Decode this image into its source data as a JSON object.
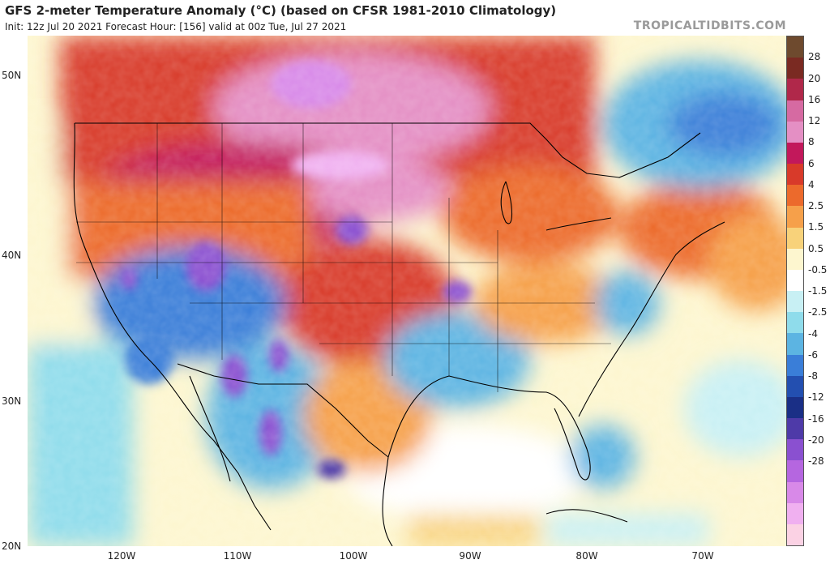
{
  "title": "GFS 2-meter Temperature Anomaly (°C) (based on CFSR 1981-2010 Climatology)",
  "subtitle": "Init: 12z Jul 20 2021   Forecast Hour: [156]   valid at 00z Tue, Jul 27 2021",
  "credit": "TROPICALTIDBITS.COM",
  "lat_labels": [
    "50N",
    "40N",
    "30N",
    "20N"
  ],
  "lon_labels": [
    "120W",
    "110W",
    "100W",
    "90W",
    "80W",
    "70W"
  ],
  "colorbar": {
    "labels": [
      "28",
      "20",
      "16",
      "12",
      "8",
      "6",
      "4",
      "2.5",
      "1.5",
      "0.5",
      "-0.5",
      "-1.5",
      "-2.5",
      "-4",
      "-6",
      "-8",
      "-12",
      "-16",
      "-20",
      "-28"
    ],
    "colors": [
      "#6e4a2e",
      "#7a2a22",
      "#b0284a",
      "#d66aa2",
      "#e48fc4",
      "#c2185b",
      "#d83a2a",
      "#ec6a2c",
      "#f6a04a",
      "#f8d27a",
      "#fdf6cf",
      "#ffffff",
      "#c8f0f4",
      "#8fdceb",
      "#5cb4e2",
      "#3a7ed8",
      "#234fb0",
      "#1a2f86",
      "#4e3aa8",
      "#8a50d0",
      "#b566e0",
      "#d889e8",
      "#f0b0f0",
      "#fbd2e4"
    ]
  }
}
